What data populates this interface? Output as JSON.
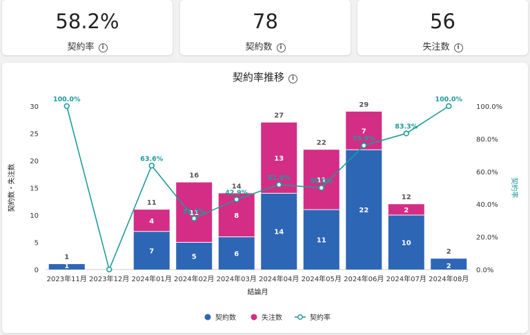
{
  "kpis": [
    {
      "value": "58.2%",
      "label": "契約率"
    },
    {
      "value": "78",
      "label": "契約数"
    },
    {
      "value": "56",
      "label": "失注数"
    }
  ],
  "info_glyph": "i",
  "chart_data": {
    "type": "bar",
    "title": "契約率推移",
    "xlabel": "結論月",
    "ylabel": "契約数・失注数",
    "y2label": "契約率",
    "categories": [
      "2023年11月",
      "2023年12月",
      "2024年01月",
      "2024年02月",
      "2024年03月",
      "2024年04月",
      "2024年05月",
      "2024年06月",
      "2024年07月",
      "2024年08月"
    ],
    "ylim": [
      0,
      30
    ],
    "yticks": [
      "0",
      "5",
      "10",
      "15",
      "20",
      "25",
      "30"
    ],
    "y2lim": [
      0,
      100
    ],
    "y2ticks": [
      "0.0%",
      "20.0%",
      "40.0%",
      "60.0%",
      "80.0%",
      "100.0%"
    ],
    "series": [
      {
        "name": "契約数",
        "color": "#2e66b6",
        "values": [
          1,
          0,
          7,
          5,
          6,
          14,
          11,
          22,
          10,
          2
        ],
        "labels": [
          "1",
          "",
          "7",
          "5",
          "6",
          "14",
          "11",
          "22",
          "10",
          "2"
        ]
      },
      {
        "name": "失注数",
        "color": "#d42d86",
        "values": [
          0,
          0,
          4,
          11,
          8,
          13,
          11,
          7,
          2,
          0
        ],
        "labels": [
          "",
          "",
          "4",
          "11",
          "8",
          "13",
          "11",
          "7",
          "2",
          ""
        ]
      },
      {
        "name": "契約率",
        "color": "#1f9a9a",
        "values": [
          100.0,
          0,
          63.6,
          31.3,
          42.9,
          51.9,
          50.0,
          75.9,
          83.3,
          100.0
        ],
        "labels": [
          "100.0%",
          "",
          "63.6%",
          "31.3%",
          "42.9%",
          "51.9%",
          "50.0%",
          "75.9%",
          "83.3%",
          "100.0%"
        ]
      }
    ],
    "totals": [
      "1",
      "",
      "11",
      "16",
      "14",
      "27",
      "22",
      "29",
      "12",
      "2"
    ],
    "legend_position": "bottom"
  }
}
